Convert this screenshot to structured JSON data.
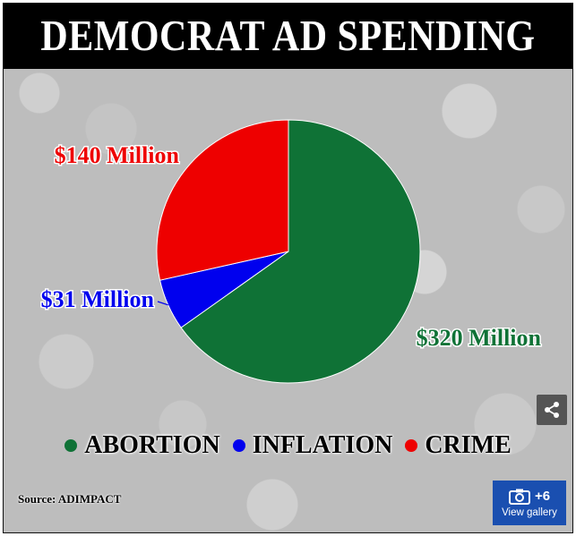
{
  "title": "DEMOCRAT AD SPENDING",
  "source": "Source: ADIMPACT",
  "gallery": {
    "count": "+6",
    "label": "View gallery"
  },
  "icons": {
    "share": "share-icon",
    "camera": "camera-icon"
  },
  "colors": {
    "abortion": "#0f7236",
    "inflation": "#0000ee",
    "crime": "#ee0000"
  },
  "chart_data": {
    "type": "pie",
    "title": "DEMOCRAT AD SPENDING",
    "unit": "Million USD",
    "slices": [
      {
        "name": "ABORTION",
        "value": 320,
        "label": "$320 Million",
        "color": "#0f7236"
      },
      {
        "name": "INFLATION",
        "value": 31,
        "label": "$31 Million",
        "color": "#0000ee"
      },
      {
        "name": "CRIME",
        "value": 140,
        "label": "$140 Million",
        "color": "#ee0000"
      }
    ],
    "legend": [
      "ABORTION",
      "INFLATION",
      "CRIME"
    ],
    "legend_position": "bottom"
  }
}
